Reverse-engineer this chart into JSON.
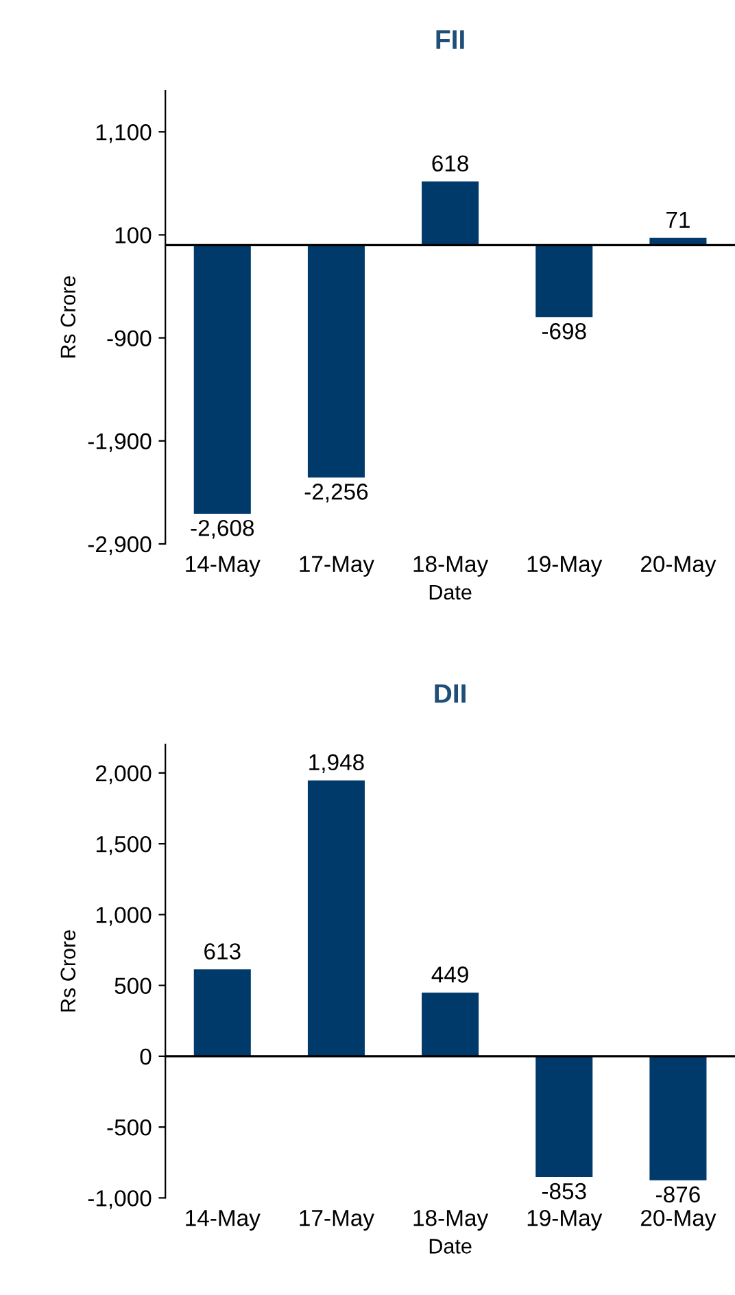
{
  "chart_data": [
    {
      "type": "bar",
      "title": "FII",
      "xlabel": "Date",
      "ylabel": "Rs Crore",
      "categories": [
        "14-May",
        "17-May",
        "18-May",
        "19-May",
        "20-May"
      ],
      "values": [
        -2608,
        -2256,
        618,
        -698,
        71
      ],
      "color": "#003a6b",
      "value_labels": [
        "-2,608",
        "-2,256",
        "618",
        "-698",
        "71"
      ],
      "ylim": [
        -2900,
        1500
      ],
      "yticks": [
        {
          "value": -2900,
          "label": "-2,900"
        },
        {
          "value": -1900,
          "label": "-1,900"
        },
        {
          "value": -900,
          "label": "-900"
        },
        {
          "value": 100,
          "label": "100"
        },
        {
          "value": 1100,
          "label": "1,100"
        }
      ],
      "ref_lines": [
        {
          "axis": "y",
          "value": 0,
          "color": "#000000"
        }
      ],
      "grid": false,
      "legend": false
    },
    {
      "type": "bar",
      "title": "DII",
      "xlabel": "Date",
      "ylabel": "Rs Crore",
      "categories": [
        "14-May",
        "17-May",
        "18-May",
        "19-May",
        "20-May"
      ],
      "values": [
        613,
        1948,
        449,
        -853,
        -876
      ],
      "color": "#003a6b",
      "value_labels": [
        "613",
        "1,948",
        "449",
        "-853",
        "-876"
      ],
      "ylim": [
        -1000,
        2200
      ],
      "yticks": [
        {
          "value": -1000,
          "label": "-1,000"
        },
        {
          "value": -500,
          "label": "-500"
        },
        {
          "value": 0,
          "label": "0"
        },
        {
          "value": 500,
          "label": "500"
        },
        {
          "value": 1000,
          "label": "1,000"
        },
        {
          "value": 1500,
          "label": "1,500"
        },
        {
          "value": 2000,
          "label": "2,000"
        }
      ],
      "ref_lines": [
        {
          "axis": "y",
          "value": 0,
          "color": "#000000"
        }
      ],
      "grid": false,
      "legend": false
    }
  ]
}
